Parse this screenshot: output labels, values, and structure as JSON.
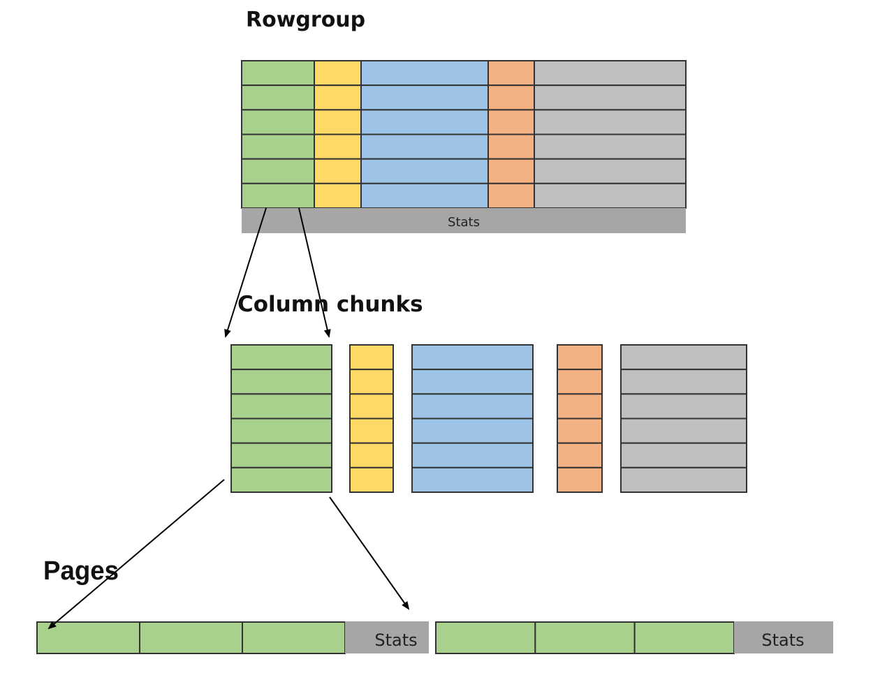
{
  "headings": {
    "rowgroup": "Rowgroup",
    "column_chunks": "Column chunks",
    "pages": "Pages"
  },
  "rowgroup": {
    "rows": 6,
    "stats_label": "Stats"
  },
  "column_chunks": {
    "rows": 6
  },
  "pages": [
    {
      "page_count": 3,
      "stats_label": "Stats"
    },
    {
      "page_count": 3,
      "stats_label": "Stats"
    }
  ],
  "colors": {
    "green": "#a9d18e",
    "yellow": "#ffd966",
    "blue": "#9dc3e6",
    "orange": "#f4b183",
    "gray": "#c0c0c0",
    "stats_bar": "#a6a6a6",
    "outline": "#333333"
  }
}
